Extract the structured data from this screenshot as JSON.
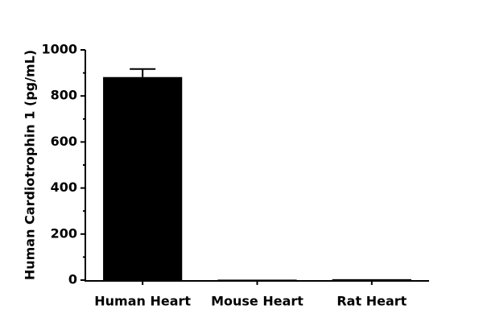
{
  "chart_data": {
    "type": "bar",
    "ylabel": "Human Cardiotrophin 1 (pg/mL)",
    "categories": [
      "Human Heart",
      "Mouse Heart",
      "Rat Heart"
    ],
    "values": [
      882,
      2,
      4
    ],
    "errors": [
      35,
      null,
      null
    ],
    "color": "#000000",
    "ylim": [
      0,
      1000
    ],
    "yticks": [
      0,
      200,
      400,
      600,
      800,
      1000
    ],
    "grid": false
  }
}
